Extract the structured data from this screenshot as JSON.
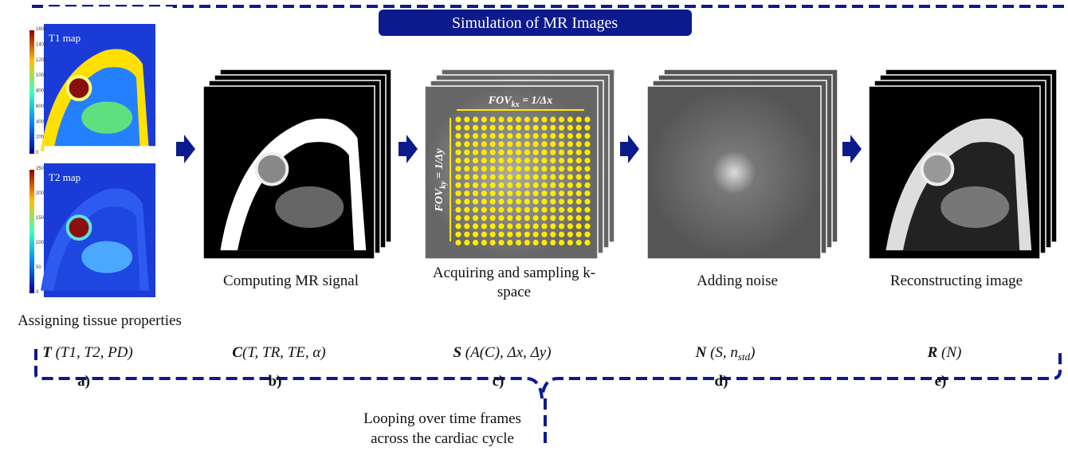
{
  "title": "Simulation of MR Images",
  "maps": [
    {
      "label": "T1 map",
      "colorbar_ticks": [
        0,
        200,
        400,
        600,
        800,
        1000,
        1200,
        1400,
        1600
      ]
    },
    {
      "label": "T2 map",
      "colorbar_ticks": [
        0,
        50,
        100,
        150,
        200,
        250
      ]
    }
  ],
  "kspace": {
    "fov_x": {
      "main": "FOV",
      "sub": "kx",
      "rest": " = 1/Δx"
    },
    "fov_y": {
      "main": "FOV",
      "sub": "ky",
      "rest": " = 1/Δy"
    }
  },
  "stages": [
    {
      "caption": "Assigning tissue properties",
      "formula": {
        "symbol": "T",
        "args": " (T1, T2, PD)"
      },
      "letter": "a)"
    },
    {
      "caption": "Computing MR signal",
      "formula": {
        "symbol": "C",
        "args": "(T, TR, TE, α)"
      },
      "letter": "b)"
    },
    {
      "caption": "Acquiring and sampling k-space",
      "formula": {
        "symbol": "S",
        "args": " (A(C), Δx, Δy)"
      },
      "letter": "c)"
    },
    {
      "caption": "Adding noise",
      "formula": {
        "symbol": "N",
        "args": " (S, n",
        "sub": "std",
        "close": ")"
      },
      "letter": "d)"
    },
    {
      "caption": "Reconstructing image",
      "formula": {
        "symbol": "R",
        "args": " (N)"
      },
      "letter": "e)"
    }
  ],
  "footer": [
    "Looping over time frames",
    "across the cardiac cycle"
  ]
}
